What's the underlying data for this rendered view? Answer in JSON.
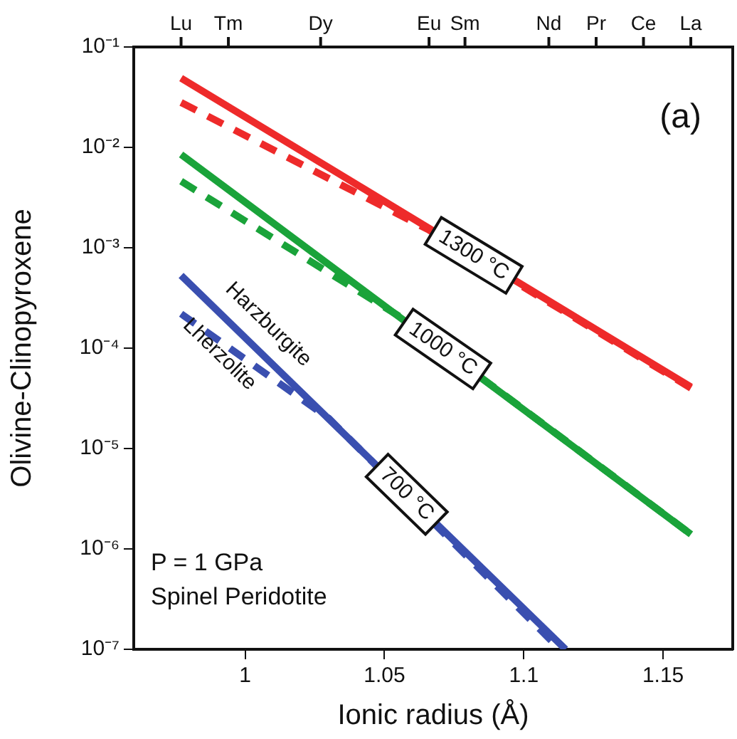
{
  "chart_data": {
    "type": "line",
    "xlabel": "Ionic radius (Å)",
    "ylabel": "Olivine-Clinopyroxene",
    "xlim": [
      0.96,
      1.175
    ],
    "xticks": [
      1,
      1.05,
      1.1,
      1.15
    ],
    "log": "y",
    "ylim": [
      1e-07,
      0.1
    ],
    "yticks": [
      {
        "value": 1e-07,
        "label": "10⁻⁷"
      },
      {
        "value": 1e-06,
        "label": "10⁻⁶"
      },
      {
        "value": 1e-05,
        "label": "10⁻⁵"
      },
      {
        "value": 0.0001,
        "label": "10⁻⁴"
      },
      {
        "value": 0.001,
        "label": "10⁻³"
      },
      {
        "value": 0.01,
        "label": "10⁻²"
      },
      {
        "value": 0.1,
        "label": "10⁻¹"
      }
    ],
    "marker": "none",
    "series": [
      {
        "color": "#ee2a2a",
        "line_style": "solid",
        "x": [
          0.977,
          1.16
        ],
        "values": [
          0.049,
          4.1e-05
        ]
      },
      {
        "color": "#ee2a2a",
        "line_style": "dashed",
        "x": [
          0.977,
          1.066,
          1.16
        ],
        "values": [
          0.028,
          0.0015,
          4e-05
        ]
      },
      {
        "color": "#1aa33a",
        "line_style": "solid",
        "x": [
          0.977,
          1.16
        ],
        "values": [
          0.0085,
          1.4e-06
        ]
      },
      {
        "color": "#1aa33a",
        "line_style": "dashed",
        "x": [
          0.977,
          1.055,
          1.16
        ],
        "values": [
          0.0046,
          0.00021,
          1.4e-06
        ]
      },
      {
        "color": "#3a4fb0",
        "line_style": "solid",
        "x": [
          0.977,
          1.115
        ],
        "values": [
          0.00053,
          1e-07
        ]
      },
      {
        "color": "#3a4fb0",
        "line_style": "dashed",
        "x": [
          0.977,
          1.03,
          1.113
        ],
        "values": [
          0.00022,
          2e-05,
          1e-07
        ]
      }
    ],
    "annotations": [
      "(a)",
      "P = 1 GPa",
      "Spinel Peridotite",
      {
        "text": "1300 °C",
        "x": 1.082,
        "y": 0.00084
      },
      {
        "text": "1000 °C",
        "x": 1.071,
        "y": 9.8e-05
      },
      {
        "text": "700 °C",
        "x": 1.058,
        "y": 3.5e-06
      },
      "Harzburgite",
      "Lherzolite",
      "Lu",
      "Tm",
      "Dy",
      "Eu",
      "Sm",
      "Nd",
      "Pr",
      "Ce",
      "La"
    ]
  }
}
